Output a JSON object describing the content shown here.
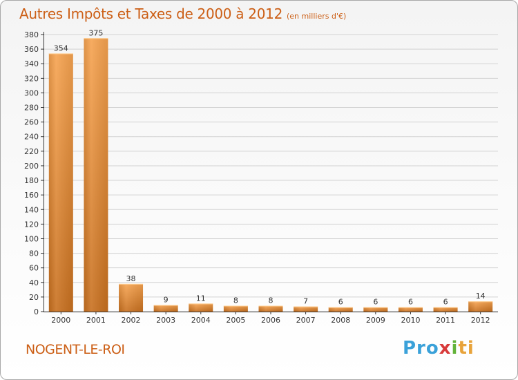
{
  "title": "Autres Impôts et Taxes de 2000 à 2012",
  "unit": "(en milliers d'€)",
  "commune": "NOGENT-LE-ROI",
  "logo": {
    "p1": "Pro",
    "p2": "x",
    "p3": "i",
    "p4": "ti"
  },
  "colors": {
    "bar_light": "#f4a24e",
    "bar_dark": "#c96d1e",
    "title": "#cc5f16"
  },
  "chart_data": {
    "type": "bar",
    "categories": [
      "2000",
      "2001",
      "2002",
      "2003",
      "2004",
      "2005",
      "2006",
      "2007",
      "2008",
      "2009",
      "2010",
      "2011",
      "2012"
    ],
    "values": [
      354,
      375,
      38,
      9,
      11,
      8,
      8,
      7,
      6,
      6,
      6,
      6,
      14
    ],
    "ylim": [
      0,
      380
    ],
    "yticks": [
      0,
      20,
      40,
      60,
      80,
      100,
      120,
      140,
      160,
      180,
      200,
      220,
      240,
      260,
      280,
      300,
      320,
      340,
      360,
      380
    ],
    "grid": true
  }
}
